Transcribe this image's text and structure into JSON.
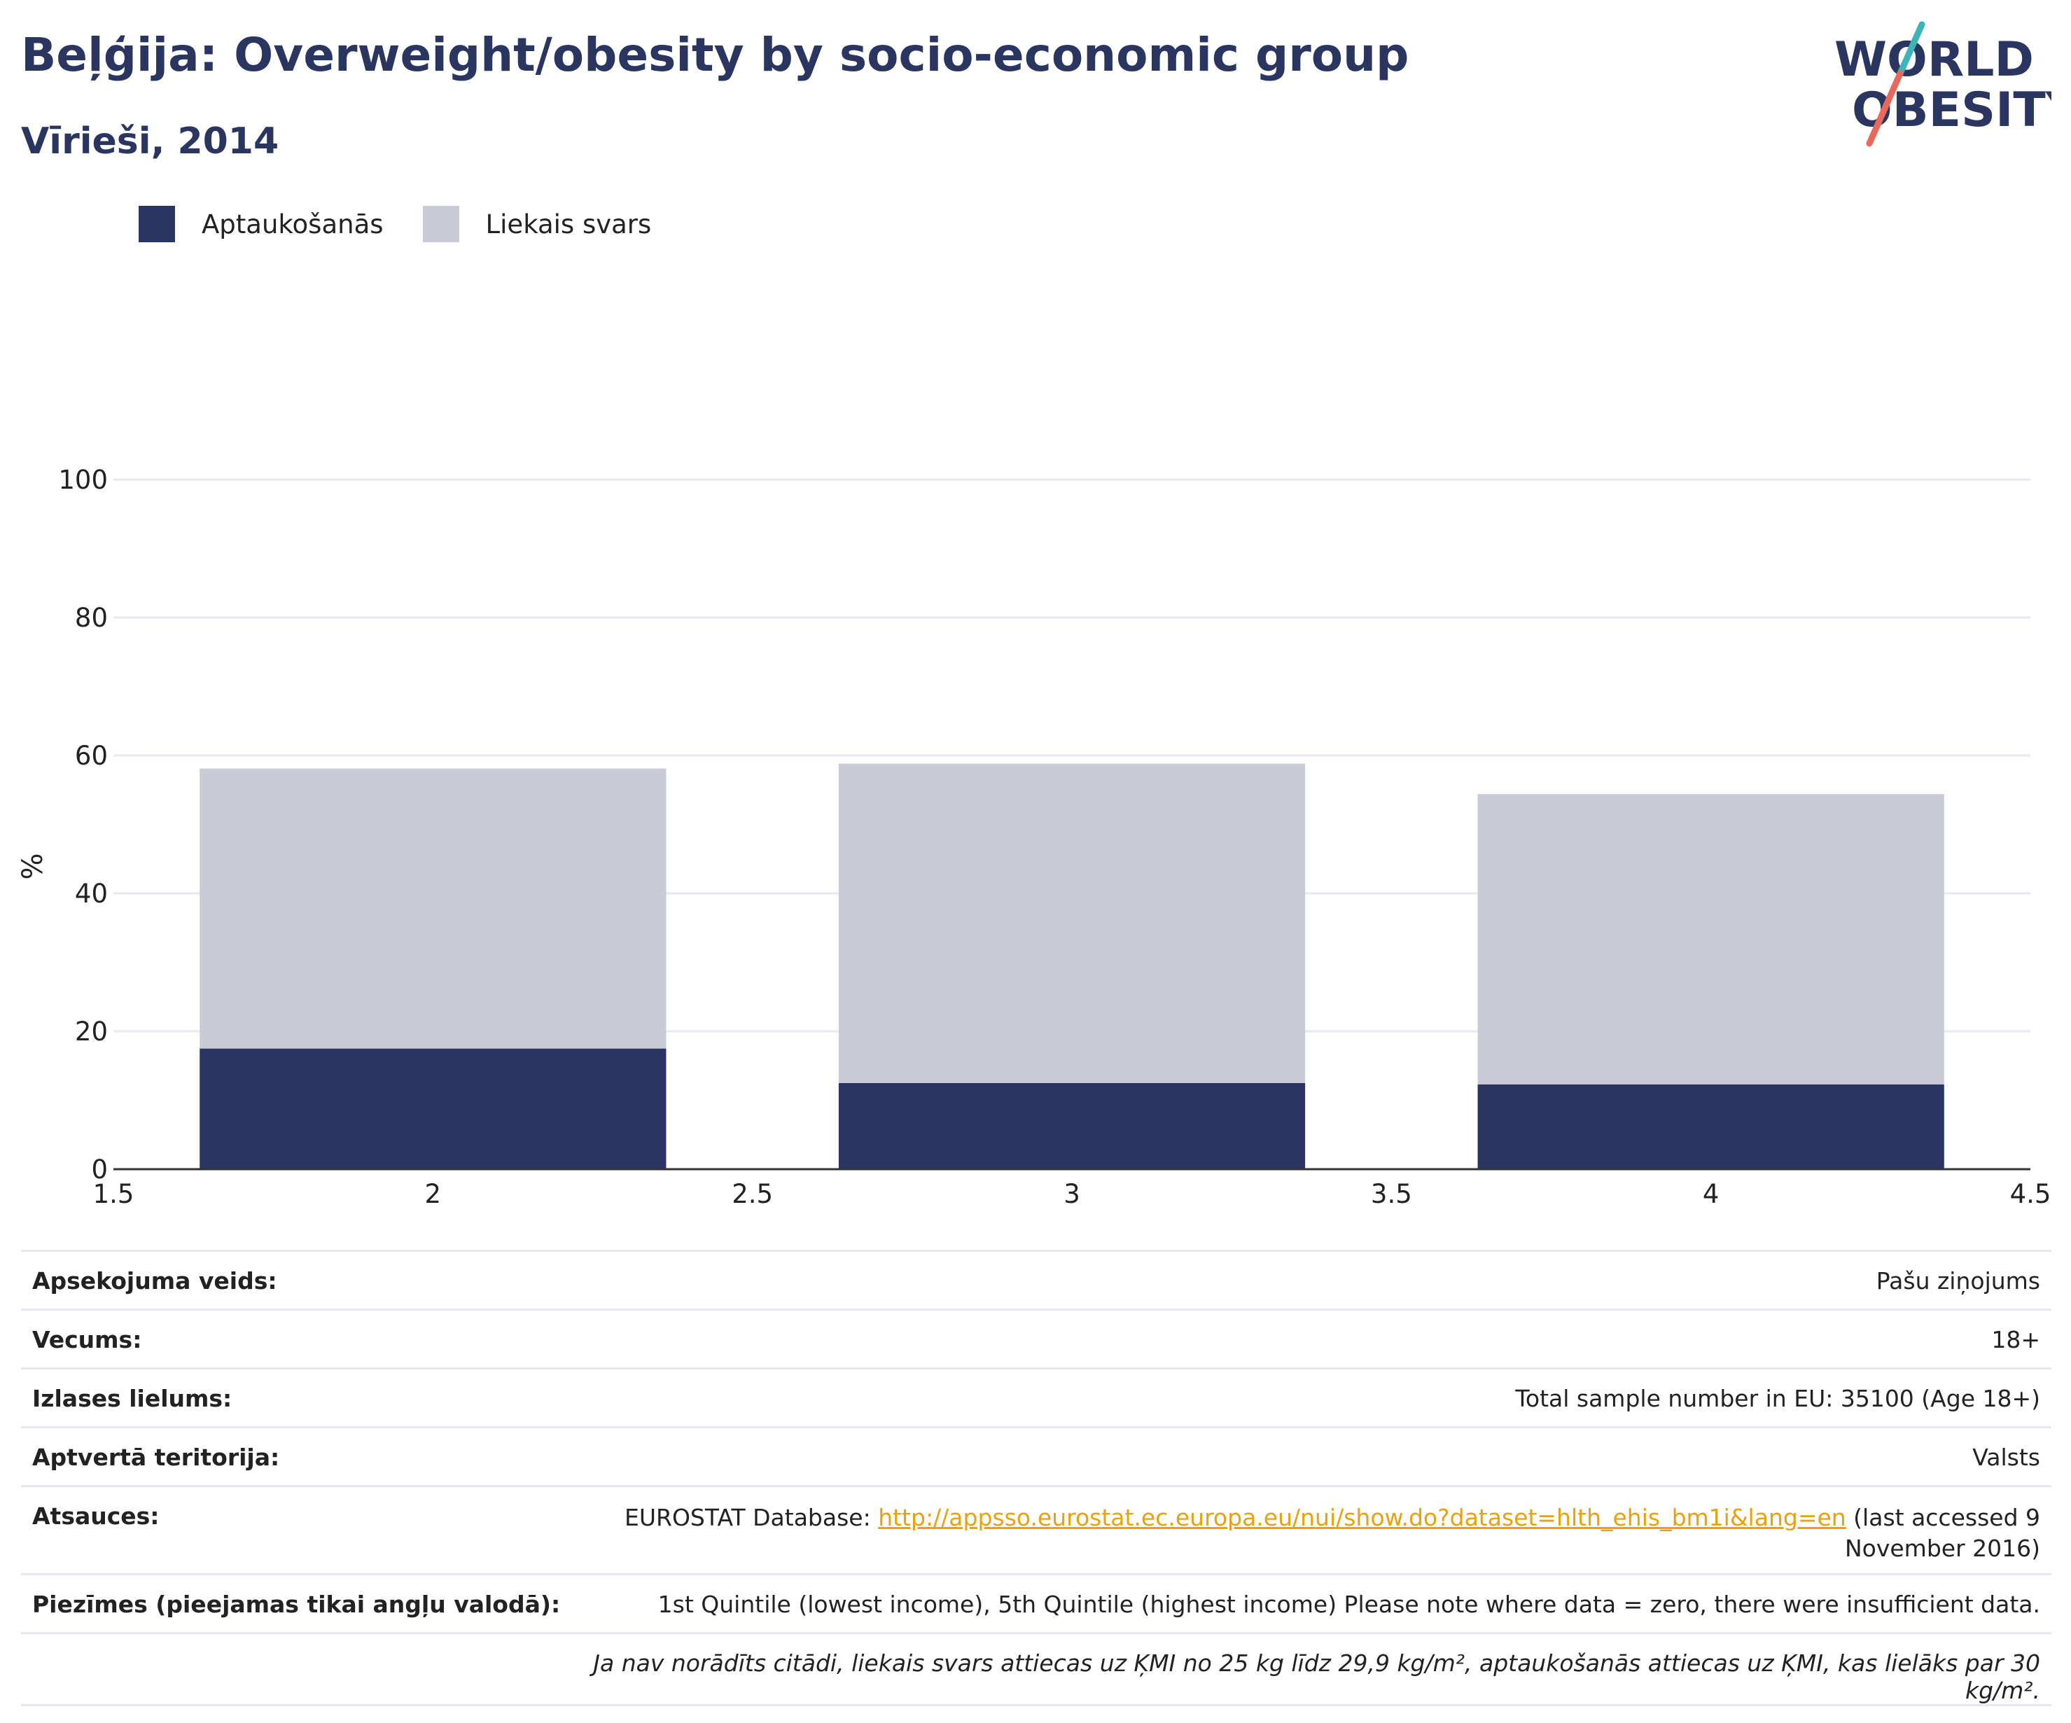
{
  "header": {
    "title": "Beļģija: Overweight/obesity by socio-economic group",
    "subtitle": "Vīrieši, 2014"
  },
  "logo": {
    "line1": "WORLD",
    "line2": "OBESITY",
    "accent_teal": "#3bb5b8",
    "accent_red": "#e8685a"
  },
  "chart_data": {
    "type": "bar",
    "stacked": true,
    "x": [
      2,
      3,
      4
    ],
    "xlim": [
      1.5,
      4.5
    ],
    "xticks": [
      "1.5",
      "2",
      "2.5",
      "3",
      "3.5",
      "4",
      "4.5"
    ],
    "ylim": [
      0,
      100
    ],
    "yticks": [
      "0",
      "20",
      "40",
      "60",
      "80",
      "100"
    ],
    "ylabel": "%",
    "grid": true,
    "legend_position": "top-left",
    "series": [
      {
        "name": "Aptaukošanās",
        "color": "#2a3563",
        "values": [
          17.5,
          12.5,
          12.3
        ]
      },
      {
        "name": "Liekais svars",
        "color": "#c9ccd7",
        "values": [
          40.6,
          46.3,
          42.1
        ]
      }
    ]
  },
  "meta": {
    "rows": [
      {
        "key": "Apsekojuma veids:",
        "value": "Pašu ziņojums"
      },
      {
        "key": "Vecums:",
        "value": "18+"
      },
      {
        "key": "Izlases lielums:",
        "value": "Total sample number in EU: 35100 (Age 18+)"
      },
      {
        "key": "Aptvertā teritorija:",
        "value": "Valsts"
      }
    ],
    "sources": {
      "key": "Atsauces:",
      "prefix": "EUROSTAT Database: ",
      "link": "http://appsso.eurostat.ec.europa.eu/nui/show.do?dataset=hlth_ehis_bm1i&lang=en",
      "suffix": " (last accessed 9 November 2016)"
    },
    "notes": {
      "key": "Piezīmes (pieejamas tikai angļu valodā):",
      "value": "1st Quintile (lowest income), 5th Quintile (highest income) Please note where data = zero, there were insufficient data."
    },
    "footnote": "Ja nav norādīts citādi, liekais svars attiecas uz ĶMI no 25 kg līdz 29,9 kg/m², aptaukošanās attiecas uz ĶMI, kas lielāks par 30 kg/m²."
  }
}
